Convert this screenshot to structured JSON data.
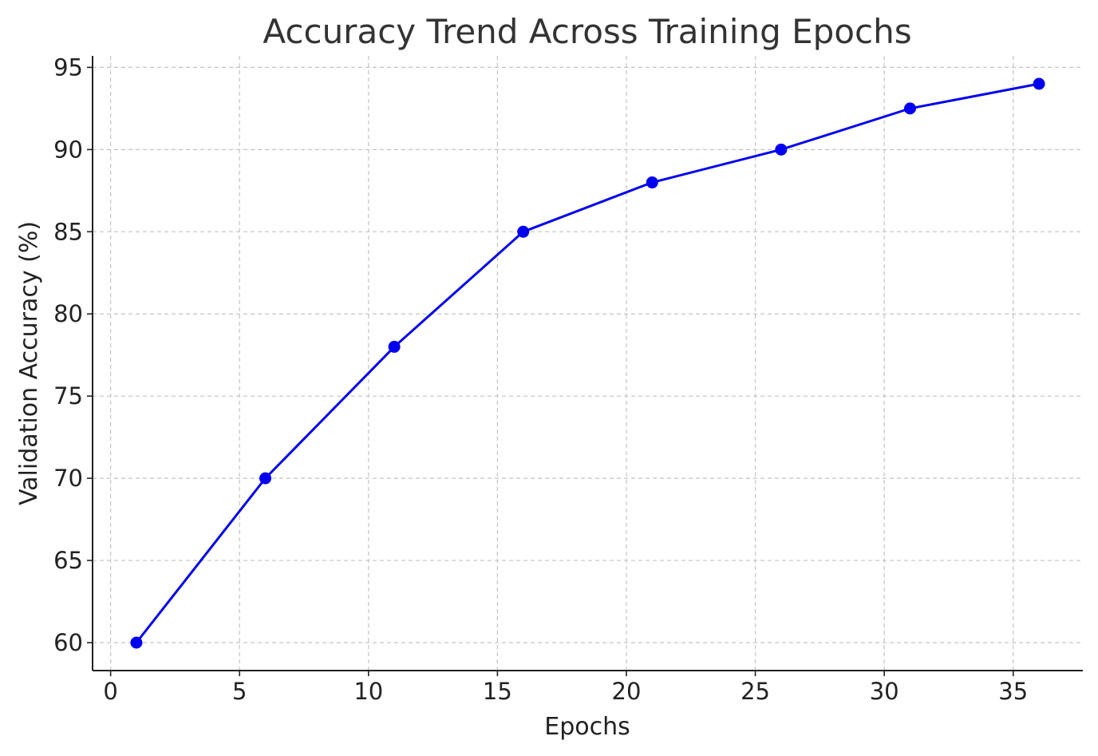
{
  "chart_data": {
    "type": "line",
    "title": "Accuracy Trend Across Training Epochs",
    "xlabel": "Epochs",
    "ylabel": "Validation Accuracy (%)",
    "x": [
      1,
      6,
      11,
      16,
      21,
      26,
      31,
      36
    ],
    "series": [
      {
        "values": [
          60,
          70,
          78,
          85,
          88,
          90,
          92.5,
          94
        ]
      }
    ],
    "xlim": [
      -0.7,
      37.7
    ],
    "ylim": [
      58.3,
      95.7
    ],
    "xticks": [
      0,
      5,
      10,
      15,
      20,
      25,
      30,
      35
    ],
    "yticks": [
      60,
      65,
      70,
      75,
      80,
      85,
      90,
      95
    ],
    "xtick_labels": [
      "0",
      "5",
      "10",
      "15",
      "20",
      "25",
      "30",
      "35"
    ],
    "ytick_labels": [
      "60",
      "65",
      "70",
      "75",
      "80",
      "85",
      "90",
      "95"
    ],
    "grid": true,
    "line_color": "#0000ee",
    "marker": "circle"
  }
}
